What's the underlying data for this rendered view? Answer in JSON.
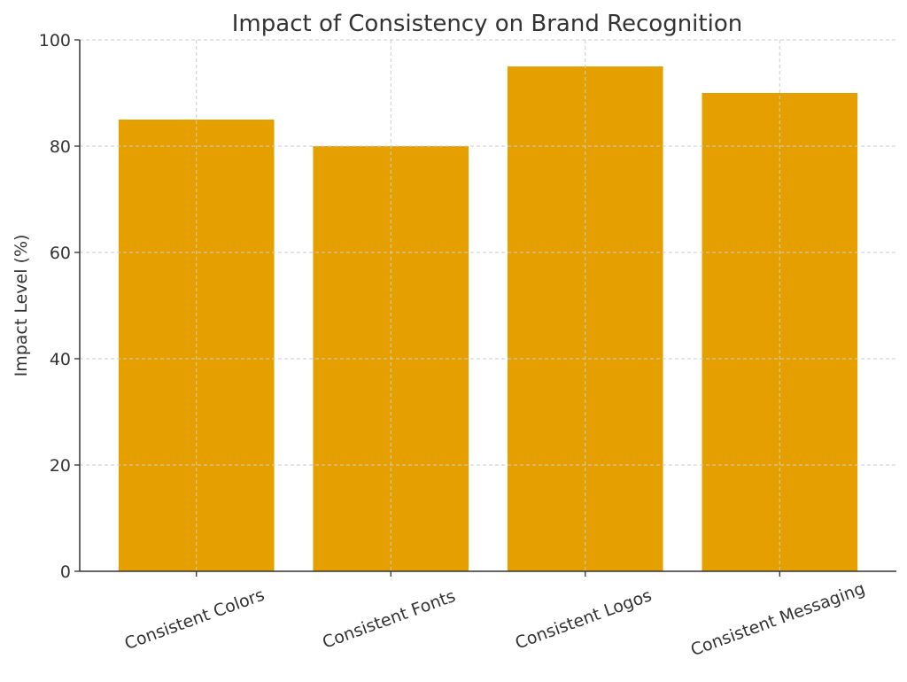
{
  "chart_data": {
    "type": "bar",
    "title": "Impact of Consistency on Brand Recognition",
    "xlabel": "",
    "ylabel": "Impact Level (%)",
    "categories": [
      "Consistent Colors",
      "Consistent Fonts",
      "Consistent Logos",
      "Consistent Messaging"
    ],
    "values": [
      85,
      80,
      95,
      90
    ],
    "ylim": [
      0,
      100
    ],
    "yticks": [
      0,
      20,
      40,
      60,
      80,
      100
    ],
    "grid": true,
    "legend": "none",
    "bar_color": "#E5A000",
    "x_tick_rotation_deg": 20
  }
}
